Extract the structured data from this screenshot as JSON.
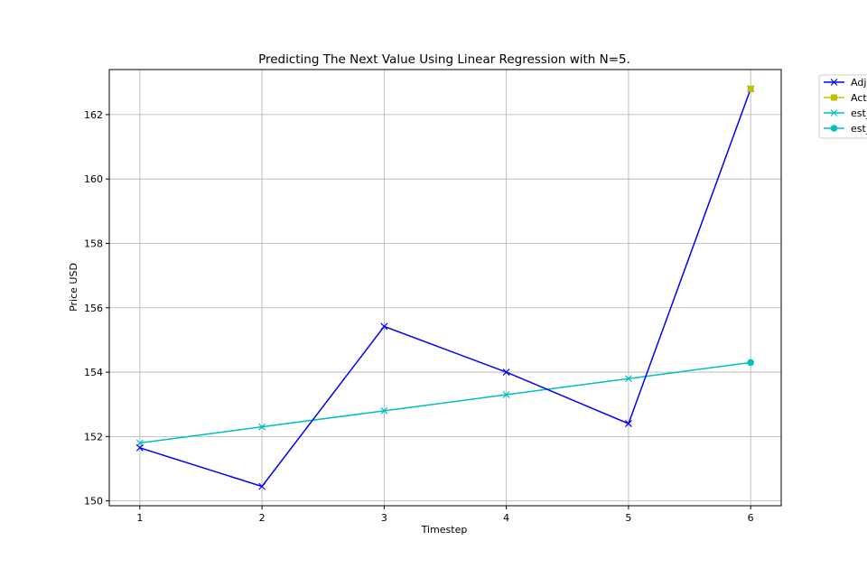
{
  "chart_data": {
    "type": "line",
    "title": "Predicting The Next Value Using Linear Regression with N=5.",
    "xlabel": "Timestep",
    "ylabel": "Price USD",
    "xlim": [
      0.75,
      6.25
    ],
    "ylim": [
      149.85,
      163.4
    ],
    "xticks": [
      1,
      2,
      3,
      4,
      5,
      6
    ],
    "yticks": [
      150,
      152,
      154,
      156,
      158,
      160,
      162
    ],
    "grid": true,
    "legend_position": "outside-top-right",
    "series": [
      {
        "name": "Adj",
        "color": "#0000ff",
        "marker": "x",
        "x": [
          1,
          2,
          3,
          4,
          5,
          6
        ],
        "y": [
          151.65,
          150.45,
          155.42,
          154.0,
          152.4,
          162.8
        ]
      },
      {
        "name": "Act",
        "color": "#bfbf00",
        "marker": "square",
        "x": [
          6
        ],
        "y": [
          162.8
        ]
      },
      {
        "name": "est_",
        "color": "#00bfbf",
        "marker": "x",
        "x": [
          1,
          2,
          3,
          4,
          5
        ],
        "y": [
          151.8,
          152.3,
          152.8,
          153.3,
          153.8
        ]
      },
      {
        "name": "est_",
        "color": "#00bfbf",
        "marker": "circle",
        "x": [
          5,
          6
        ],
        "y": [
          153.8,
          154.3
        ]
      }
    ]
  }
}
